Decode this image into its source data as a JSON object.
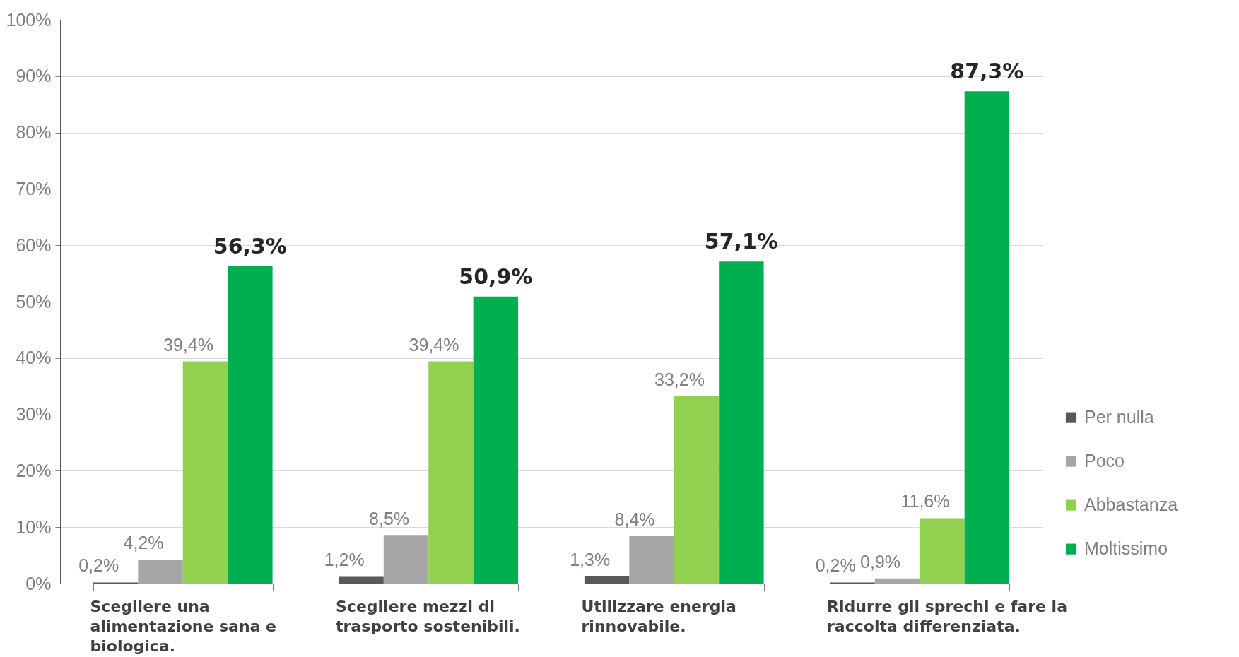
{
  "chart_data": {
    "type": "bar",
    "categories": [
      "Scegliere una alimentazione sana e biologica.",
      "Scegliere mezzi di trasporto sostenibili.",
      "Utilizzare energia rinnovabile.",
      "Ridurre gli sprechi e fare la raccolta differenziata."
    ],
    "series": [
      {
        "name": "Per nulla",
        "color": "#595959",
        "values": [
          0.2,
          1.2,
          1.3,
          0.2
        ],
        "value_labels": [
          "0,2%",
          "1,2%",
          "1,3%",
          "0,2%"
        ]
      },
      {
        "name": "Poco",
        "color": "#a6a6a6",
        "values": [
          4.2,
          8.5,
          8.4,
          0.9
        ],
        "value_labels": [
          "4,2%",
          "8,5%",
          "8,4%",
          "0,9%"
        ]
      },
      {
        "name": "Abbastanza",
        "color": "#92d050",
        "values": [
          39.4,
          39.4,
          33.2,
          11.6
        ],
        "value_labels": [
          "39,4%",
          "39,4%",
          "33,2%",
          "11,6%"
        ]
      },
      {
        "name": "Moltissimo",
        "color": "#00b050",
        "values": [
          56.3,
          50.9,
          57.1,
          87.3
        ],
        "value_labels": [
          "56,3%",
          "50,9%",
          "57,1%",
          "87,3%"
        ]
      }
    ],
    "ylim": [
      0,
      100
    ],
    "yticks": [
      {
        "value": 0,
        "label": "0%"
      },
      {
        "value": 10,
        "label": "10%"
      },
      {
        "value": 20,
        "label": "20%"
      },
      {
        "value": 30,
        "label": "30%"
      },
      {
        "value": 40,
        "label": "40%"
      },
      {
        "value": 50,
        "label": "50%"
      },
      {
        "value": 60,
        "label": "60%"
      },
      {
        "value": 70,
        "label": "70%"
      },
      {
        "value": 80,
        "label": "80%"
      },
      {
        "value": 90,
        "label": "90%"
      },
      {
        "value": 100,
        "label": "100%"
      }
    ],
    "grid": "y",
    "legend": "right"
  }
}
